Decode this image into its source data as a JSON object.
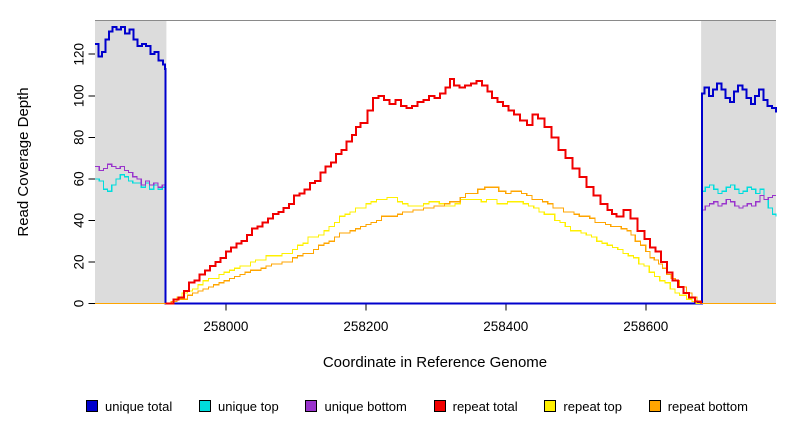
{
  "chart_data": {
    "type": "line",
    "title": "",
    "xlabel": "Coordinate in Reference Genome",
    "ylabel": "Read Coverage Depth",
    "xlim": [
      257813,
      258786
    ],
    "ylim": [
      0,
      136
    ],
    "x_ticks": [
      258000,
      258200,
      258400,
      258600
    ],
    "y_ticks": [
      0,
      20,
      40,
      60,
      80,
      100,
      120
    ],
    "grid": false,
    "legend_position": "bottom",
    "shade_color": "#dcdcdc",
    "frame_color": "#8a8a8a",
    "shaded_regions": [
      [
        257813,
        257915
      ],
      [
        258679,
        258786
      ]
    ],
    "series": [
      {
        "name": "unique total",
        "color": "#0000cc",
        "lwd": 2,
        "points": [
          [
            257813,
            125
          ],
          [
            257818,
            119
          ],
          [
            257823,
            121
          ],
          [
            257828,
            127
          ],
          [
            257833,
            131
          ],
          [
            257838,
            133
          ],
          [
            257844,
            132
          ],
          [
            257850,
            133
          ],
          [
            257856,
            130
          ],
          [
            257862,
            132
          ],
          [
            257868,
            127
          ],
          [
            257874,
            124
          ],
          [
            257880,
            125
          ],
          [
            257886,
            124
          ],
          [
            257892,
            120
          ],
          [
            257898,
            121
          ],
          [
            257904,
            117
          ],
          [
            257910,
            115
          ],
          [
            257913,
            113
          ],
          [
            257914,
            0
          ],
          [
            258679,
            0
          ],
          [
            258680,
            101
          ],
          [
            258684,
            104
          ],
          [
            258690,
            100
          ],
          [
            258696,
            103
          ],
          [
            258702,
            106
          ],
          [
            258708,
            103
          ],
          [
            258714,
            99
          ],
          [
            258720,
            97
          ],
          [
            258726,
            102
          ],
          [
            258732,
            105
          ],
          [
            258738,
            103
          ],
          [
            258744,
            99
          ],
          [
            258750,
            96
          ],
          [
            258756,
            100
          ],
          [
            258762,
            103
          ],
          [
            258768,
            98
          ],
          [
            258774,
            95
          ],
          [
            258780,
            94
          ],
          [
            258786,
            92
          ]
        ]
      },
      {
        "name": "unique top",
        "color": "#00dddd",
        "lwd": 1.2,
        "points": [
          [
            257813,
            60
          ],
          [
            257819,
            59
          ],
          [
            257825,
            55
          ],
          [
            257831,
            54
          ],
          [
            257837,
            57
          ],
          [
            257843,
            60
          ],
          [
            257849,
            62
          ],
          [
            257855,
            61
          ],
          [
            257861,
            59
          ],
          [
            257867,
            58
          ],
          [
            257873,
            58
          ],
          [
            257879,
            56
          ],
          [
            257885,
            58
          ],
          [
            257891,
            55
          ],
          [
            257897,
            57
          ],
          [
            257903,
            55
          ],
          [
            257909,
            56
          ],
          [
            257913,
            56
          ],
          [
            257914,
            0
          ],
          [
            258679,
            0
          ],
          [
            258680,
            54
          ],
          [
            258685,
            56
          ],
          [
            258691,
            57
          ],
          [
            258697,
            55
          ],
          [
            258703,
            53
          ],
          [
            258709,
            54
          ],
          [
            258715,
            56
          ],
          [
            258721,
            57
          ],
          [
            258727,
            55
          ],
          [
            258733,
            53
          ],
          [
            258739,
            54
          ],
          [
            258745,
            56
          ],
          [
            258751,
            55
          ],
          [
            258757,
            53
          ],
          [
            258763,
            55
          ],
          [
            258769,
            50
          ],
          [
            258775,
            46
          ],
          [
            258781,
            43
          ],
          [
            258786,
            42
          ]
        ]
      },
      {
        "name": "unique bottom",
        "color": "#9933cc",
        "lwd": 1.2,
        "points": [
          [
            257813,
            66
          ],
          [
            257819,
            64
          ],
          [
            257825,
            65
          ],
          [
            257831,
            67
          ],
          [
            257837,
            66
          ],
          [
            257843,
            65
          ],
          [
            257849,
            66
          ],
          [
            257855,
            64
          ],
          [
            257861,
            63
          ],
          [
            257867,
            61
          ],
          [
            257873,
            60
          ],
          [
            257879,
            57
          ],
          [
            257885,
            59
          ],
          [
            257891,
            57
          ],
          [
            257897,
            58
          ],
          [
            257903,
            56
          ],
          [
            257909,
            57
          ],
          [
            257913,
            57
          ],
          [
            257914,
            0
          ],
          [
            258679,
            0
          ],
          [
            258680,
            45
          ],
          [
            258685,
            47
          ],
          [
            258691,
            48
          ],
          [
            258697,
            49
          ],
          [
            258703,
            47
          ],
          [
            258709,
            48
          ],
          [
            258715,
            50
          ],
          [
            258721,
            49
          ],
          [
            258727,
            47
          ],
          [
            258733,
            46
          ],
          [
            258739,
            47
          ],
          [
            258745,
            48
          ],
          [
            258751,
            47
          ],
          [
            258757,
            49
          ],
          [
            258763,
            52
          ],
          [
            258769,
            50
          ],
          [
            258775,
            51
          ],
          [
            258781,
            52
          ],
          [
            258786,
            52
          ]
        ]
      },
      {
        "name": "repeat total",
        "color": "#f10000",
        "lwd": 2,
        "points": [
          [
            257914,
            0
          ],
          [
            257925,
            2
          ],
          [
            257940,
            6
          ],
          [
            257955,
            11
          ],
          [
            257970,
            16
          ],
          [
            257985,
            20
          ],
          [
            258000,
            25
          ],
          [
            258015,
            29
          ],
          [
            258030,
            33
          ],
          [
            258045,
            37
          ],
          [
            258060,
            41
          ],
          [
            258075,
            44
          ],
          [
            258090,
            48
          ],
          [
            258105,
            53
          ],
          [
            258120,
            58
          ],
          [
            258135,
            63
          ],
          [
            258150,
            68
          ],
          [
            258165,
            74
          ],
          [
            258180,
            81
          ],
          [
            258192,
            87
          ],
          [
            258202,
            93
          ],
          [
            258210,
            99
          ],
          [
            258218,
            100
          ],
          [
            258226,
            98
          ],
          [
            258234,
            96
          ],
          [
            258242,
            98
          ],
          [
            258250,
            95
          ],
          [
            258258,
            94
          ],
          [
            258266,
            95
          ],
          [
            258274,
            97
          ],
          [
            258282,
            98
          ],
          [
            258290,
            100
          ],
          [
            258298,
            99
          ],
          [
            258306,
            101
          ],
          [
            258314,
            104
          ],
          [
            258320,
            108
          ],
          [
            258326,
            105
          ],
          [
            258334,
            104
          ],
          [
            258342,
            105
          ],
          [
            258350,
            106
          ],
          [
            258358,
            107
          ],
          [
            258366,
            105
          ],
          [
            258374,
            102
          ],
          [
            258380,
            99
          ],
          [
            258388,
            97
          ],
          [
            258396,
            95
          ],
          [
            258404,
            93
          ],
          [
            258412,
            91
          ],
          [
            258420,
            88
          ],
          [
            258430,
            86
          ],
          [
            258438,
            91
          ],
          [
            258446,
            89
          ],
          [
            258455,
            85
          ],
          [
            258465,
            80
          ],
          [
            258475,
            74
          ],
          [
            258485,
            70
          ],
          [
            258495,
            65
          ],
          [
            258505,
            61
          ],
          [
            258515,
            56
          ],
          [
            258525,
            52
          ],
          [
            258535,
            48
          ],
          [
            258545,
            45
          ],
          [
            258558,
            42
          ],
          [
            258568,
            45
          ],
          [
            258578,
            41
          ],
          [
            258588,
            35
          ],
          [
            258598,
            31
          ],
          [
            258606,
            27
          ],
          [
            258614,
            25
          ],
          [
            258622,
            20
          ],
          [
            258630,
            15
          ],
          [
            258638,
            11
          ],
          [
            258646,
            8
          ],
          [
            258654,
            5
          ],
          [
            258662,
            3
          ],
          [
            258670,
            1
          ],
          [
            258679,
            0
          ]
        ]
      },
      {
        "name": "repeat top",
        "color": "#fff000",
        "lwd": 1.2,
        "points": [
          [
            257914,
            0
          ],
          [
            257930,
            3
          ],
          [
            257945,
            6
          ],
          [
            257960,
            9
          ],
          [
            257975,
            12
          ],
          [
            257990,
            14
          ],
          [
            258005,
            16
          ],
          [
            258020,
            18
          ],
          [
            258035,
            20
          ],
          [
            258050,
            21
          ],
          [
            258065,
            23
          ],
          [
            258080,
            24
          ],
          [
            258095,
            26
          ],
          [
            258110,
            29
          ],
          [
            258125,
            32
          ],
          [
            258140,
            35
          ],
          [
            258155,
            39
          ],
          [
            258170,
            43
          ],
          [
            258185,
            46
          ],
          [
            258200,
            48
          ],
          [
            258215,
            50
          ],
          [
            258230,
            51
          ],
          [
            258245,
            49
          ],
          [
            258260,
            47
          ],
          [
            258275,
            47
          ],
          [
            258290,
            49
          ],
          [
            258305,
            48
          ],
          [
            258320,
            47
          ],
          [
            258335,
            50
          ],
          [
            258350,
            50
          ],
          [
            258365,
            49
          ],
          [
            258380,
            50
          ],
          [
            258395,
            48
          ],
          [
            258410,
            49
          ],
          [
            258425,
            48
          ],
          [
            258440,
            46
          ],
          [
            258455,
            43
          ],
          [
            258470,
            40
          ],
          [
            258485,
            37
          ],
          [
            258500,
            35
          ],
          [
            258515,
            33
          ],
          [
            258530,
            30
          ],
          [
            258545,
            28
          ],
          [
            258560,
            26
          ],
          [
            258575,
            23
          ],
          [
            258590,
            19
          ],
          [
            258605,
            15
          ],
          [
            258620,
            11
          ],
          [
            258635,
            7
          ],
          [
            258648,
            4
          ],
          [
            258658,
            2
          ],
          [
            258666,
            1
          ],
          [
            258672,
            0
          ],
          [
            258679,
            0
          ]
        ]
      },
      {
        "name": "repeat bottom",
        "color": "#ffa500",
        "lwd": 1.2,
        "points": [
          [
            257813,
            0
          ],
          [
            257914,
            0
          ],
          [
            257930,
            2
          ],
          [
            257945,
            4
          ],
          [
            257960,
            6
          ],
          [
            257975,
            8
          ],
          [
            257990,
            10
          ],
          [
            258005,
            12
          ],
          [
            258020,
            14
          ],
          [
            258035,
            16
          ],
          [
            258050,
            17
          ],
          [
            258065,
            19
          ],
          [
            258080,
            20
          ],
          [
            258095,
            22
          ],
          [
            258110,
            24
          ],
          [
            258125,
            26
          ],
          [
            258140,
            29
          ],
          [
            258155,
            32
          ],
          [
            258170,
            34
          ],
          [
            258185,
            36
          ],
          [
            258200,
            38
          ],
          [
            258215,
            40
          ],
          [
            258230,
            42
          ],
          [
            258245,
            43
          ],
          [
            258260,
            44
          ],
          [
            258275,
            45
          ],
          [
            258290,
            46
          ],
          [
            258305,
            47
          ],
          [
            258320,
            49
          ],
          [
            258335,
            51
          ],
          [
            258350,
            53
          ],
          [
            258360,
            55
          ],
          [
            258370,
            56
          ],
          [
            258380,
            56
          ],
          [
            258390,
            54
          ],
          [
            258400,
            53
          ],
          [
            258415,
            54
          ],
          [
            258430,
            52
          ],
          [
            258445,
            50
          ],
          [
            258460,
            48
          ],
          [
            258475,
            46
          ],
          [
            258490,
            44
          ],
          [
            258505,
            42
          ],
          [
            258520,
            41
          ],
          [
            258535,
            39
          ],
          [
            258550,
            37
          ],
          [
            258565,
            36
          ],
          [
            258573,
            35
          ],
          [
            258585,
            30
          ],
          [
            258600,
            25
          ],
          [
            258612,
            21
          ],
          [
            258624,
            17
          ],
          [
            258636,
            12
          ],
          [
            258648,
            8
          ],
          [
            258658,
            5
          ],
          [
            258666,
            3
          ],
          [
            258673,
            1
          ],
          [
            258679,
            0
          ],
          [
            258786,
            0
          ]
        ]
      }
    ]
  }
}
